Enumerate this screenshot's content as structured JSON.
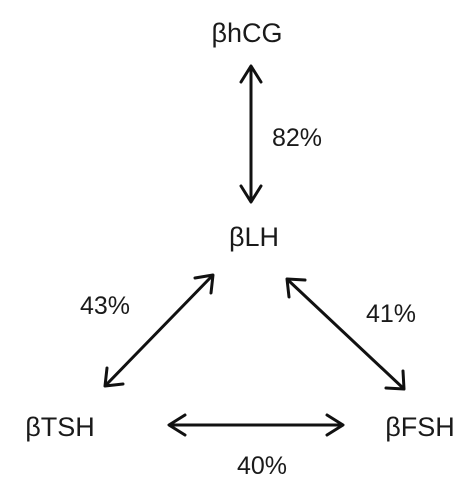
{
  "nodes": {
    "bhcg": "βhCG",
    "blh": "βLH",
    "btsh": "βTSH",
    "bfsh": "βFSH"
  },
  "edges": {
    "bhcg_blh": "82%",
    "blh_btsh": "43%",
    "blh_bfsh": "41%",
    "btsh_bfsh": "40%"
  }
}
